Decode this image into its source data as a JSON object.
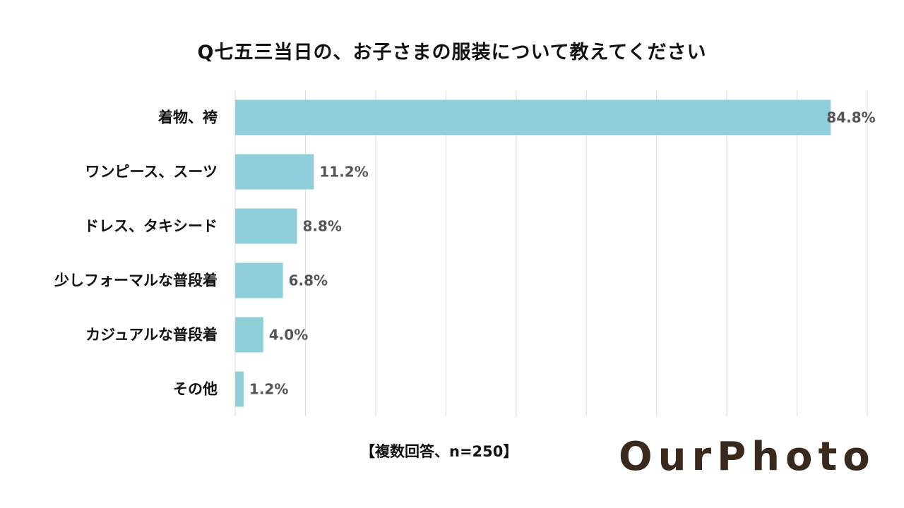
{
  "chart_data": {
    "type": "bar",
    "orientation": "horizontal",
    "title": "Q七五三当日の、お子さまの服装について教えてください",
    "categories": [
      "着物、袴",
      "ワンピース、スーツ",
      "ドレス、タキシード",
      "少しフォーマルな普段着",
      "カジュアルな普段着",
      "その他"
    ],
    "values": [
      84.8,
      11.2,
      8.8,
      6.8,
      4.0,
      1.2
    ],
    "value_labels": [
      "84.8%",
      "11.2%",
      "8.8%",
      "6.8%",
      "4.0%",
      "1.2%"
    ],
    "xlim": [
      0,
      90
    ],
    "grid": true,
    "bar_color": "#8ecfda",
    "grid_color": "#d9d9d9",
    "footnote": "【複数回答、n=250】"
  },
  "brand": {
    "logo_text": "OurPhoto",
    "logo_color": "#3a2a1e"
  }
}
